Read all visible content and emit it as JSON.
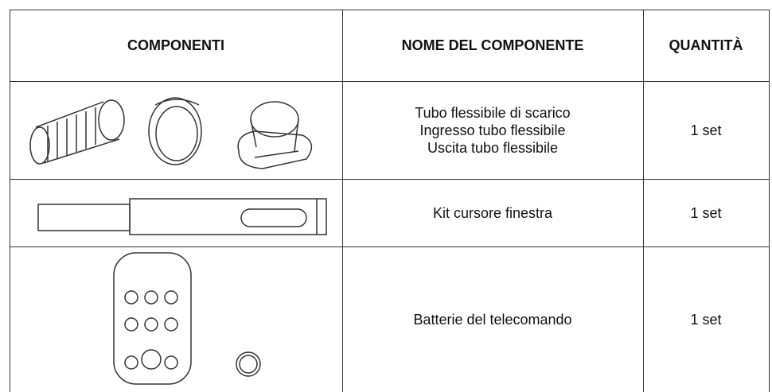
{
  "header": {
    "columns": [
      "COMPONENTI",
      "NOME DEL COMPONENTE",
      "QUANTITÀ"
    ]
  },
  "table": {
    "rows": [
      {
        "name": [
          "Tubo flessibile di scarico",
          "Ingresso tubo flessibile",
          "Uscita tubo flessibile"
        ],
        "quantity": "1 set"
      },
      {
        "name": [
          "Kit cursore finestra"
        ],
        "quantity": "1 set"
      },
      {
        "name": [
          "Batterie del telecomando"
        ],
        "quantity": "1 set"
      }
    ]
  }
}
